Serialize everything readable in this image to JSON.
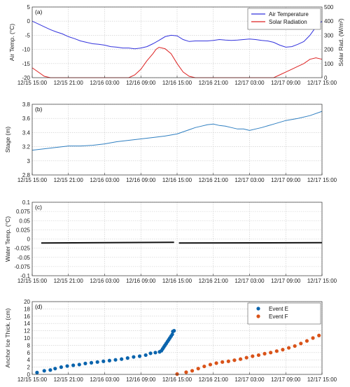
{
  "colors": {
    "blue": "#3333dd",
    "red": "#dd2222",
    "stage": "#2f7fc1",
    "water": "#111111",
    "eventE": "#0a64ad",
    "eventF": "#d95319",
    "leftAxis": "#2b8ccc",
    "rightAxis": "#d95319"
  },
  "x_tick_labels": [
    "12/15 15:00",
    "12/15 21:00",
    "12/16 03:00",
    "12/16 09:00",
    "12/16 15:00",
    "12/16 21:00",
    "12/17 03:00",
    "12/17 09:00",
    "12/17 15:00"
  ],
  "chart_data": [
    {
      "panel": "(a)",
      "type": "line",
      "ylabel": "Air Temp. (°C)",
      "y2label": "Solar Rad. (W/m²)",
      "ylim": [
        -20,
        5
      ],
      "y2lim": [
        0,
        500
      ],
      "xlim": [
        0,
        48
      ],
      "yticks": [
        -20,
        -15,
        -10,
        -5,
        0,
        5
      ],
      "y2ticks": [
        0,
        100,
        200,
        300,
        400,
        500
      ],
      "legend": "top-right",
      "series": [
        {
          "name": "Air Temperature",
          "axis": "left",
          "color": "#3333dd",
          "x": [
            0,
            1,
            2,
            3,
            4,
            5,
            6,
            7,
            8,
            9,
            10,
            11,
            12,
            13,
            14,
            15,
            16,
            17,
            18,
            19,
            20,
            21,
            22,
            23,
            24,
            25,
            26,
            27,
            28,
            29,
            30,
            31,
            32,
            33,
            34,
            35,
            36,
            37,
            38,
            39,
            40,
            41,
            42,
            43,
            44,
            45,
            46,
            47,
            48
          ],
          "y": [
            0,
            -1,
            -2,
            -3,
            -3.8,
            -4.5,
            -5.5,
            -6.2,
            -7,
            -7.5,
            -8,
            -8.2,
            -8.5,
            -9,
            -9.2,
            -9.5,
            -9.5,
            -9.8,
            -9.5,
            -9,
            -8,
            -6.8,
            -5.5,
            -5,
            -5.2,
            -6.5,
            -7.2,
            -7,
            -7,
            -7,
            -6.8,
            -6.5,
            -6.7,
            -6.8,
            -6.7,
            -6.5,
            -6.3,
            -6.5,
            -6.8,
            -7,
            -7.5,
            -8.5,
            -9.2,
            -9,
            -8.2,
            -7.2,
            -5,
            -2,
            0
          ]
        },
        {
          "name": "Solar Radiation",
          "axis": "right",
          "color": "#dd2222",
          "x": [
            0,
            1,
            2,
            3,
            16,
            17,
            18,
            19,
            20,
            20.5,
            21,
            22,
            23,
            24,
            25,
            26,
            27,
            40,
            41,
            42,
            43,
            44,
            45,
            46,
            47,
            48
          ],
          "y": [
            70,
            40,
            10,
            0,
            0,
            20,
            60,
            120,
            170,
            200,
            215,
            205,
            170,
            100,
            40,
            10,
            0,
            0,
            20,
            40,
            60,
            80,
            100,
            130,
            140,
            130
          ]
        }
      ]
    },
    {
      "panel": "(b)",
      "type": "line",
      "ylabel": "Stage (m)",
      "ylim": [
        2.8,
        3.8
      ],
      "yticks": [
        2.8,
        3,
        3.2,
        3.4,
        3.6,
        3.8
      ],
      "xlim": [
        0,
        48
      ],
      "series": [
        {
          "color": "#2f7fc1",
          "x": [
            0,
            2,
            4,
            6,
            8,
            10,
            12,
            14,
            16,
            18,
            20,
            22,
            24,
            25,
            26,
            27,
            28,
            29,
            30,
            31,
            32,
            33,
            34,
            35,
            36,
            37,
            38,
            40,
            42,
            44,
            46,
            48
          ],
          "y": [
            3.15,
            3.17,
            3.19,
            3.21,
            3.21,
            3.22,
            3.24,
            3.27,
            3.29,
            3.31,
            3.33,
            3.35,
            3.38,
            3.41,
            3.44,
            3.47,
            3.49,
            3.51,
            3.52,
            3.5,
            3.49,
            3.47,
            3.45,
            3.45,
            3.43,
            3.45,
            3.47,
            3.52,
            3.57,
            3.6,
            3.64,
            3.7
          ]
        }
      ]
    },
    {
      "panel": "(c)",
      "type": "line",
      "ylabel": "Water Temp. (°C)",
      "ylim": [
        -0.1,
        0.1
      ],
      "yticks": [
        -0.1,
        -0.075,
        -0.05,
        -0.025,
        0,
        0.025,
        0.05,
        0.075,
        0.1
      ],
      "ytick_labels": [
        "-0.1",
        "-0.075",
        "-0.05",
        "-0.025",
        "0",
        "0.025",
        "0.05",
        "0.075",
        "0.1"
      ],
      "xlim": [
        0,
        48
      ],
      "series": [
        {
          "color": "#111111",
          "x": [
            1.5,
            23.5
          ],
          "y": [
            -0.011,
            -0.009
          ]
        },
        {
          "color": "#111111",
          "x": [
            24.3,
            48
          ],
          "y": [
            -0.011,
            -0.01
          ]
        }
      ]
    },
    {
      "panel": "(d)",
      "type": "scatter",
      "ylabel": "Anchor Ice Thick. (cm)",
      "ylim": [
        0,
        20
      ],
      "yticks": [
        0,
        2,
        4,
        6,
        8,
        10,
        12,
        14,
        16,
        18,
        20
      ],
      "xlim": [
        0,
        48
      ],
      "legend": "top-right",
      "series": [
        {
          "name": "Event E",
          "color": "#0a64ad",
          "x": [
            0.8,
            2,
            3,
            3.8,
            4.8,
            5.8,
            6.8,
            7.8,
            8.8,
            9.8,
            10.8,
            11.8,
            12.8,
            13.8,
            14.8,
            15.8,
            16.8,
            17.8,
            18.8,
            19.6,
            20.4,
            21.1,
            21.4,
            21.6,
            21.8,
            22,
            22.2,
            22.4,
            22.6,
            22.8,
            23,
            23.2,
            23.3,
            23.5
          ],
          "y": [
            0.5,
            1,
            1.2,
            1.6,
            2,
            2.3,
            2.5,
            2.7,
            3,
            3.2,
            3.4,
            3.6,
            3.8,
            4,
            4.2,
            4.5,
            4.8,
            5,
            5.3,
            5.8,
            6,
            6.2,
            6.5,
            7,
            7.5,
            8,
            8.5,
            9,
            9.5,
            10,
            10.5,
            11,
            11.8,
            12
          ]
        },
        {
          "name": "Event F",
          "color": "#d95319",
          "x": [
            24,
            25.5,
            26.5,
            27.5,
            28.5,
            29.5,
            30.5,
            31.5,
            32.5,
            33.5,
            34.5,
            35.5,
            36.5,
            37.5,
            38.5,
            39.5,
            40.5,
            41.5,
            42.5,
            43.5,
            44.5,
            45.5,
            46.5,
            47.5
          ],
          "y": [
            0.1,
            0.6,
            1,
            1.6,
            2.2,
            2.7,
            3.1,
            3.4,
            3.6,
            3.9,
            4.2,
            4.6,
            5,
            5.3,
            5.7,
            6,
            6.4,
            6.8,
            7.3,
            7.8,
            8.5,
            9.2,
            10,
            10.7
          ]
        }
      ]
    }
  ]
}
